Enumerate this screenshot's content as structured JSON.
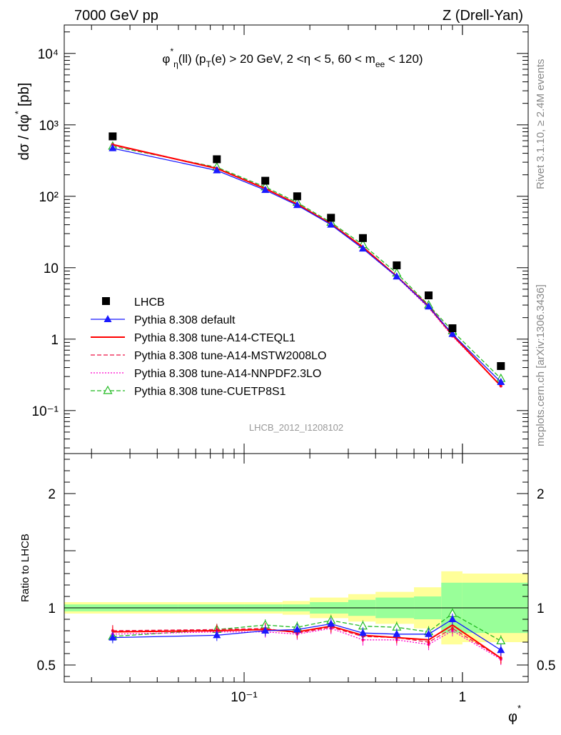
{
  "header": {
    "left": "7000 GeV pp",
    "right": "Z (Drell-Yan)"
  },
  "side_text": {
    "rivet": "Rivet 3.1.10, ≥ 2.4M events",
    "mcplots": "mcplots.cern.ch [arXiv:1306.3436]"
  },
  "watermark": "LHCB_2012_I1208102",
  "colors": {
    "data": "#000000",
    "default": "#1a1aff",
    "cteql1": "#ff0000",
    "mstw": "#ee1144",
    "nnpdf": "#ff00cc",
    "cuetp8s1": "#22bb22",
    "band_inner": "#99ff99",
    "band_outer": "#ffff99"
  },
  "chart_data": [
    {
      "type": "scatter",
      "panel": "main",
      "title": "φ*η(ll) (pT(e) > 20 GeV, 2 <η < 5, 60 < mee < 120)",
      "title_parts": {
        "phi": "φ",
        "star": "*",
        "eta_sub": "η",
        "p1": "(ll) (p",
        "T_sub": "T",
        "p2": "(e) > 20 GeV, 2 <η < 5, 60 < m",
        "ee_sub": "ee",
        "p3": " < 120)"
      },
      "ylabel": "dσ / dφ* [pb]",
      "ylabel_parts": {
        "main": "dσ / dφ",
        "star": "*",
        "unit": "[pb]"
      },
      "xscale": "log",
      "yscale": "log",
      "xlim": [
        0.015,
        2.0
      ],
      "ylim": [
        0.025,
        25000
      ],
      "y_ticks": [
        "10⁻¹",
        "1",
        "10",
        "10²",
        "10³",
        "10⁴"
      ],
      "legend_placement": "bottom-left",
      "x": [
        0.025,
        0.075,
        0.125,
        0.175,
        0.25,
        0.35,
        0.5,
        0.7,
        0.9,
        1.5
      ],
      "data": {
        "name": "LHCB",
        "values": [
          690,
          330,
          165,
          100,
          50,
          26,
          10.8,
          4.1,
          1.42,
          0.42
        ]
      },
      "series": [
        {
          "name": "Pythia 8.308 default",
          "color_key": "default",
          "style": "solid",
          "marker": "filled-triangle",
          "values": [
            470,
            230,
            122,
            75,
            40,
            18.5,
            7.5,
            2.85,
            1.18,
            0.25
          ]
        },
        {
          "name": "Pythia 8.308 tune-A14-CTEQL1",
          "color_key": "cteql1",
          "style": "solid",
          "marker": "none",
          "values": [
            530,
            245,
            128,
            78,
            41,
            19.5,
            7.6,
            2.9,
            1.15,
            0.22
          ]
        },
        {
          "name": "Pythia 8.308 tune-A14-MSTW2008LO",
          "color_key": "mstw",
          "style": "dashed",
          "marker": "small-dot",
          "values": [
            530,
            248,
            130,
            77,
            40,
            19.0,
            7.6,
            2.8,
            1.12,
            0.22
          ]
        },
        {
          "name": "Pythia 8.308 tune-A14-NNPDF2.3LO",
          "color_key": "nnpdf",
          "style": "dotted",
          "marker": "small-dot",
          "values": [
            520,
            245,
            128,
            77,
            40,
            18.5,
            7.4,
            2.75,
            1.1,
            0.22
          ]
        },
        {
          "name": "Pythia 8.308 tune-CUETP8S1",
          "color_key": "cuetp8s1",
          "style": "dashed",
          "marker": "open-triangle",
          "values": [
            500,
            255,
            135,
            82,
            43,
            21.0,
            8.4,
            3.0,
            1.3,
            0.28
          ]
        }
      ]
    },
    {
      "type": "line",
      "panel": "ratio",
      "ylabel": "Ratio to LHCB",
      "xlabel": "φ*",
      "xlabel_parts": {
        "main": "φ",
        "star": "*"
      },
      "xscale": "log",
      "xlim": [
        0.015,
        2.0
      ],
      "ylim": [
        0.35,
        2.35
      ],
      "y_ticks": [
        "0.5",
        "1",
        "2"
      ],
      "x_ticks": [
        "10⁻¹",
        "1"
      ],
      "bins": [
        0.015,
        0.05,
        0.1,
        0.15,
        0.2,
        0.3,
        0.4,
        0.6,
        0.8,
        1.0,
        2.0
      ],
      "band_inner_halfwidth": [
        0.03,
        0.03,
        0.03,
        0.03,
        0.05,
        0.07,
        0.09,
        0.1,
        0.22,
        0.22
      ],
      "band_outer_halfwidth": [
        0.05,
        0.05,
        0.05,
        0.06,
        0.09,
        0.12,
        0.14,
        0.18,
        0.32,
        0.3
      ],
      "x": [
        0.025,
        0.075,
        0.125,
        0.175,
        0.25,
        0.35,
        0.5,
        0.7,
        0.9,
        1.5
      ],
      "series": [
        {
          "name": "Pythia 8.308 default",
          "color_key": "default",
          "style": "solid",
          "marker": "filled-triangle",
          "values": [
            0.74,
            0.76,
            0.8,
            0.81,
            0.86,
            0.78,
            0.77,
            0.77,
            0.9,
            0.63
          ]
        },
        {
          "name": "Pythia 8.308 tune-A14-CTEQL1",
          "color_key": "cteql1",
          "style": "solid",
          "marker": "none",
          "values": [
            0.79,
            0.8,
            0.81,
            0.79,
            0.84,
            0.76,
            0.74,
            0.72,
            0.85,
            0.56
          ]
        },
        {
          "name": "Pythia 8.308 tune-A14-MSTW2008LO",
          "color_key": "mstw",
          "style": "dashed",
          "marker": "small-dot",
          "values": [
            0.8,
            0.81,
            0.82,
            0.78,
            0.83,
            0.75,
            0.74,
            0.7,
            0.82,
            0.56
          ]
        },
        {
          "name": "Pythia 8.308 tune-A14-NNPDF2.3LO",
          "color_key": "nnpdf",
          "style": "dotted",
          "marker": "small-dot",
          "values": [
            0.77,
            0.79,
            0.79,
            0.77,
            0.82,
            0.72,
            0.72,
            0.68,
            0.8,
            0.55
          ]
        },
        {
          "name": "Pythia 8.308 tune-CUETP8S1",
          "color_key": "cuetp8s1",
          "style": "dashed",
          "marker": "open-triangle",
          "values": [
            0.75,
            0.81,
            0.85,
            0.83,
            0.89,
            0.84,
            0.83,
            0.79,
            0.95,
            0.71
          ]
        }
      ]
    }
  ]
}
